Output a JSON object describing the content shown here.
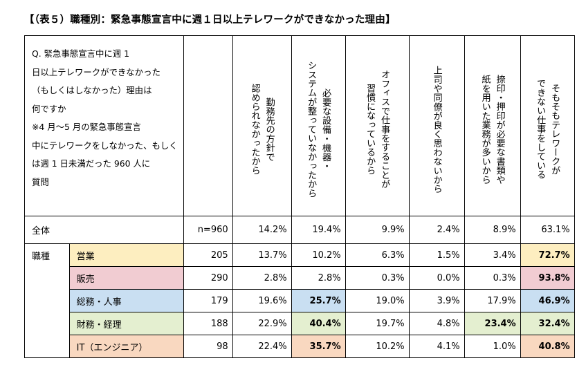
{
  "title": "【（表５）職種別：緊急事態宣言中に週１日以上テレワークができなかった理由】",
  "question_lines": [
    "Q. 緊急事態宣言中に週 1",
    "日以上テレワークができなかった",
    "（もしくはしなかった）理由は",
    "何ですか",
    "※4 月～5 月の緊急事態宣言",
    "中にテレワークをしなかった、もしく",
    "は週 1 日未満だった 960 人に",
    "質問"
  ],
  "columns": [
    {
      "lines": [
        "勤務先の方針で",
        "認められなかったから"
      ]
    },
    {
      "lines": [
        "必要な設備・機器・",
        "システムが整っていなかったから"
      ]
    },
    {
      "lines": [
        "オフィスで仕事をすることが",
        "習慣になっているから"
      ]
    },
    {
      "lines": [
        "上司や同僚が良く思わないから"
      ]
    },
    {
      "lines": [
        "捺印・押印が必要な書類や",
        "紙を用いた業務が多いから"
      ]
    },
    {
      "lines": [
        "そもそもテレワークが",
        "できない仕事をしている"
      ]
    }
  ],
  "overall": {
    "label": "全体",
    "n": "n=960",
    "values": [
      "14.2%",
      "19.4%",
      "9.9%",
      "2.4%",
      "8.9%",
      "63.1%"
    ]
  },
  "category_label": "職種",
  "rows": [
    {
      "label": "営業",
      "n": "205",
      "values": [
        "13.7%",
        "10.2%",
        "6.3%",
        "1.5%",
        "3.4%",
        "72.7%"
      ]
    },
    {
      "label": "販売",
      "n": "290",
      "values": [
        "2.8%",
        "2.8%",
        "0.3%",
        "0.0%",
        "0.3%",
        "93.8%"
      ]
    },
    {
      "label": "総務・人事",
      "n": "179",
      "values": [
        "19.6%",
        "25.7%",
        "19.0%",
        "3.9%",
        "17.9%",
        "46.9%"
      ]
    },
    {
      "label": "財務・経理",
      "n": "188",
      "values": [
        "22.9%",
        "40.4%",
        "19.7%",
        "4.8%",
        "23.4%",
        "32.4%"
      ]
    },
    {
      "label": "IT（エンジニア）",
      "n": "98",
      "values": [
        "22.4%",
        "35.7%",
        "10.2%",
        "4.1%",
        "1.0%",
        "40.8%"
      ]
    }
  ],
  "colors": {
    "営業": "#fdeec0",
    "販売": "#f1ccd2",
    "総務・人事": "#c9dff2",
    "財務・経理": "#e4efd0",
    "IT（エンジニア）": "#f9d8c0"
  }
}
